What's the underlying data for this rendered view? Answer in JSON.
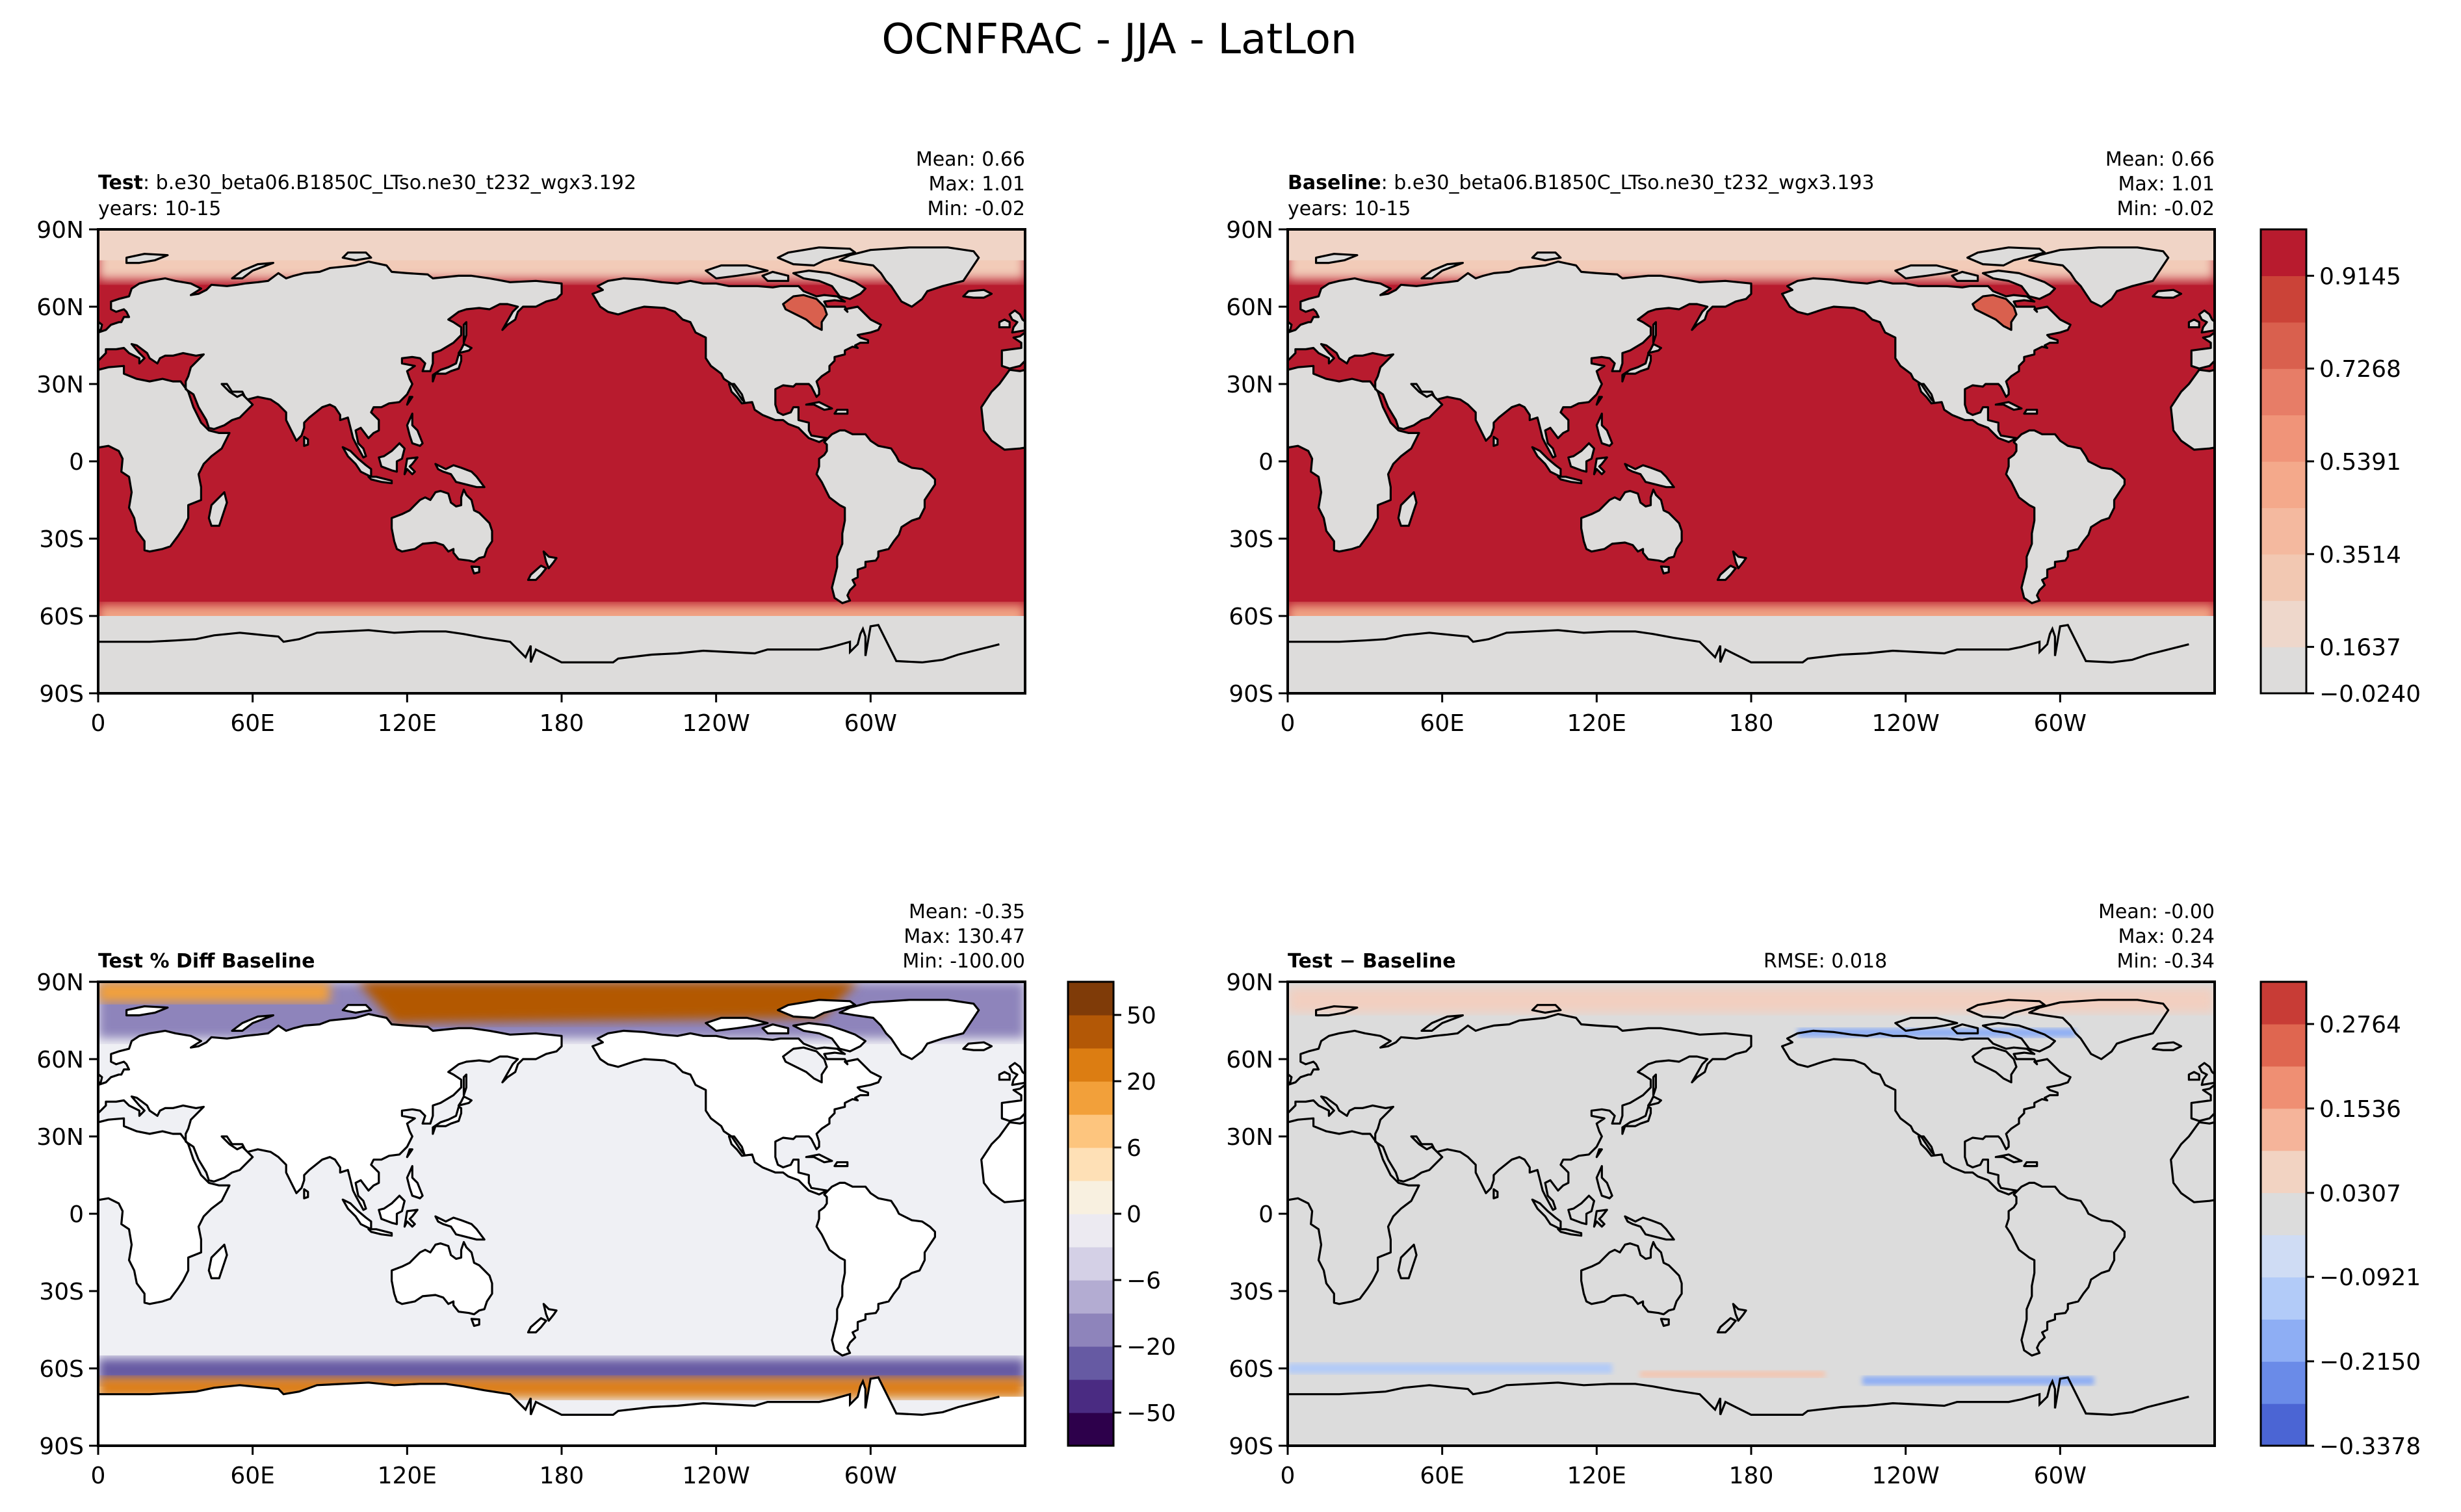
{
  "figure": {
    "title": "OCNFRAC - JJA - LatLon"
  },
  "chart_data": [
    {
      "type": "heatmap",
      "panel": "test",
      "label_bold": "Test",
      "label_rest": ": b.e30_beta06.B1850C_LTso.ne30_t232_wgx3.192",
      "years": "years: 10-15",
      "stats": [
        "Mean:  0.66",
        "Max:  1.01",
        "Min: -0.02"
      ],
      "xticks": [
        "0",
        "60E",
        "120E",
        "180",
        "120W",
        "60W"
      ],
      "yticks": [
        "90N",
        "60N",
        "30N",
        "0",
        "30S",
        "60S",
        "90S"
      ],
      "xlim": [
        0,
        360
      ],
      "ylim": [
        -90,
        90
      ],
      "colors": {
        "ocean": "#b81b2e",
        "land": "#dddcdb",
        "ice_edge": "#f2cbb8"
      }
    },
    {
      "type": "heatmap",
      "panel": "baseline",
      "label_bold": "Baseline",
      "label_rest": ": b.e30_beta06.B1850C_LTso.ne30_t232_wgx3.193",
      "years": "years: 10-15",
      "stats": [
        "Mean:  0.66",
        "Max:  1.01",
        "Min: -0.02"
      ],
      "xticks": [
        "0",
        "60E",
        "120E",
        "180",
        "120W",
        "60W"
      ],
      "yticks": [
        "90N",
        "60N",
        "30N",
        "0",
        "30S",
        "60S",
        "90S"
      ],
      "xlim": [
        0,
        360
      ],
      "ylim": [
        -90,
        90
      ],
      "colorbar": {
        "ticks": [
          "0.9145",
          "0.7268",
          "0.5391",
          "0.3514",
          "0.1637",
          "−0.0240"
        ],
        "colors": [
          "#dddcdb",
          "#eed7cb",
          "#f2c8b2",
          "#f4b99f",
          "#f4a98b",
          "#f09479",
          "#e77d67",
          "#d9604e",
          "#cb4338",
          "#b81b2e"
        ]
      },
      "colors": {
        "ocean": "#b81b2e",
        "land": "#dddcdb",
        "ice_edge": "#f2cbb8"
      }
    },
    {
      "type": "heatmap",
      "panel": "pct_diff",
      "label_bold": "Test % Diff Baseline",
      "stats": [
        "Mean: -0.35",
        "Max: 130.47",
        "Min: -100.00"
      ],
      "xticks": [
        "0",
        "60E",
        "120E",
        "180",
        "120W",
        "60W"
      ],
      "yticks": [
        "90N",
        "60N",
        "30N",
        "0",
        "30S",
        "60S",
        "90S"
      ],
      "xlim": [
        0,
        360
      ],
      "ylim": [
        -90,
        90
      ],
      "colorbar": {
        "ticks": [
          "50",
          "20",
          "6",
          "0",
          "−6",
          "−20",
          "−50"
        ],
        "colors": [
          "#2d004b",
          "#4a2b82",
          "#665aa3",
          "#8e84bb",
          "#b3acd2",
          "#d4d0e6",
          "#eceaf1",
          "#f8f0e0",
          "#fee0b6",
          "#fdc57e",
          "#f2a03a",
          "#dc7d12",
          "#b35806",
          "#7f3b08"
        ]
      },
      "colors": {
        "field": "#eff0f4",
        "land": "#ffffff",
        "pos": "#c06208",
        "neg": "#5e4a98"
      }
    },
    {
      "type": "heatmap",
      "panel": "diff",
      "label_bold": "Test − Baseline",
      "rmse": "RMSE: 0.018",
      "stats": [
        "Mean: -0.00",
        "Max:  0.24",
        "Min: -0.34"
      ],
      "xticks": [
        "0",
        "60E",
        "120E",
        "180",
        "120W",
        "60W"
      ],
      "yticks": [
        "90N",
        "60N",
        "30N",
        "0",
        "30S",
        "60S",
        "90S"
      ],
      "xlim": [
        0,
        360
      ],
      "ylim": [
        -90,
        90
      ],
      "colorbar": {
        "ticks": [
          "0.2764",
          "0.1536",
          "0.0307",
          "−0.0921",
          "−0.2150",
          "−0.3378"
        ],
        "colors": [
          "#4b65d4",
          "#6a8be8",
          "#8eaef4",
          "#b2cbf8",
          "#cfdcf4",
          "#dcdcdc",
          "#f2d3c2",
          "#f5b49a",
          "#ef8f73",
          "#df6650",
          "#c83c36"
        ]
      },
      "colors": {
        "field": "#dcdcdc",
        "land": "#dcdcdc",
        "pos": "#f0b59c",
        "neg": "#8eaef4"
      }
    }
  ]
}
